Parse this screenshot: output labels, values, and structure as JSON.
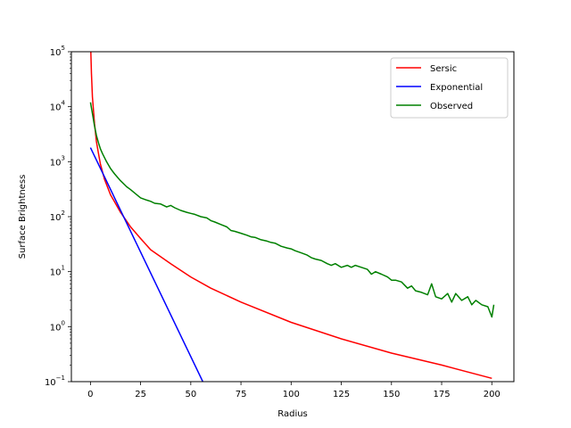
{
  "chart_data": {
    "type": "line",
    "title": "",
    "xlabel": "Radius",
    "ylabel": "Surface Brightness",
    "xlim": [
      -9.5,
      211
    ],
    "ylim": [
      0.1,
      100000
    ],
    "yscale": "log",
    "grid": false,
    "legend_position": "top-right",
    "x_ticks": [
      {
        "value": 0,
        "label": "0"
      },
      {
        "value": 25,
        "label": "25"
      },
      {
        "value": 50,
        "label": "50"
      },
      {
        "value": 75,
        "label": "75"
      },
      {
        "value": 100,
        "label": "100"
      },
      {
        "value": 125,
        "label": "125"
      },
      {
        "value": 150,
        "label": "150"
      },
      {
        "value": 175,
        "label": "175"
      },
      {
        "value": 200,
        "label": "200"
      }
    ],
    "y_ticks": [
      {
        "value": 0.1,
        "base": "10",
        "exp": "−1"
      },
      {
        "value": 1,
        "base": "10",
        "exp": "0"
      },
      {
        "value": 10,
        "base": "10",
        "exp": "1"
      },
      {
        "value": 100,
        "base": "10",
        "exp": "2"
      },
      {
        "value": 1000,
        "base": "10",
        "exp": "3"
      },
      {
        "value": 10000,
        "base": "10",
        "exp": "4"
      },
      {
        "value": 100000,
        "base": "10",
        "exp": "5"
      }
    ],
    "series": [
      {
        "name": "Sersic",
        "color": "#ff0000",
        "x": [
          0.2,
          0.5,
          1,
          2,
          3,
          4,
          5,
          7,
          10,
          15,
          20,
          25,
          30,
          40,
          50,
          60,
          75,
          100,
          125,
          150,
          175,
          200
        ],
        "y": [
          100000,
          40000,
          15000,
          5000,
          2300,
          1400,
          900,
          480,
          250,
          120,
          65,
          40,
          25,
          14,
          8,
          5,
          2.8,
          1.2,
          0.6,
          0.33,
          0.2,
          0.115
        ]
      },
      {
        "name": "Exponential",
        "color": "#0000ff",
        "x": [
          0,
          56
        ],
        "y": [
          1800,
          0.1
        ]
      },
      {
        "name": "Observed",
        "color": "#008000",
        "x": [
          0,
          1,
          2,
          3,
          4,
          5,
          6,
          8,
          10,
          12,
          15,
          18,
          20,
          22,
          25,
          28,
          30,
          32,
          35,
          38,
          40,
          42,
          45,
          48,
          50,
          52,
          55,
          58,
          60,
          62,
          65,
          68,
          70,
          72,
          75,
          78,
          80,
          82,
          85,
          88,
          90,
          92,
          95,
          98,
          100,
          102,
          105,
          108,
          110,
          112,
          115,
          118,
          120,
          122,
          125,
          128,
          130,
          132,
          135,
          138,
          140,
          142,
          145,
          148,
          150,
          152,
          155,
          158,
          160,
          162,
          165,
          168,
          170,
          172,
          175,
          178,
          180,
          182,
          185,
          188,
          190,
          192,
          195,
          198,
          200,
          201
        ],
        "y": [
          12000,
          7500,
          4500,
          3000,
          2200,
          1700,
          1400,
          1000,
          750,
          600,
          450,
          350,
          310,
          270,
          220,
          200,
          190,
          175,
          170,
          150,
          160,
          145,
          130,
          120,
          115,
          110,
          100,
          95,
          85,
          80,
          72,
          65,
          56,
          54,
          50,
          46,
          43,
          42,
          38,
          36,
          34,
          33,
          29,
          27,
          26,
          24,
          22,
          20,
          18,
          17,
          16,
          14,
          13,
          14,
          12,
          13,
          12,
          13,
          12,
          11,
          9,
          10,
          9,
          8,
          7,
          7,
          6.5,
          5,
          5.5,
          4.5,
          4.2,
          3.8,
          6,
          3.5,
          3.2,
          4,
          2.8,
          4,
          3,
          3.5,
          2.5,
          3,
          2.5,
          2.3,
          1.5,
          2.5
        ]
      }
    ]
  }
}
